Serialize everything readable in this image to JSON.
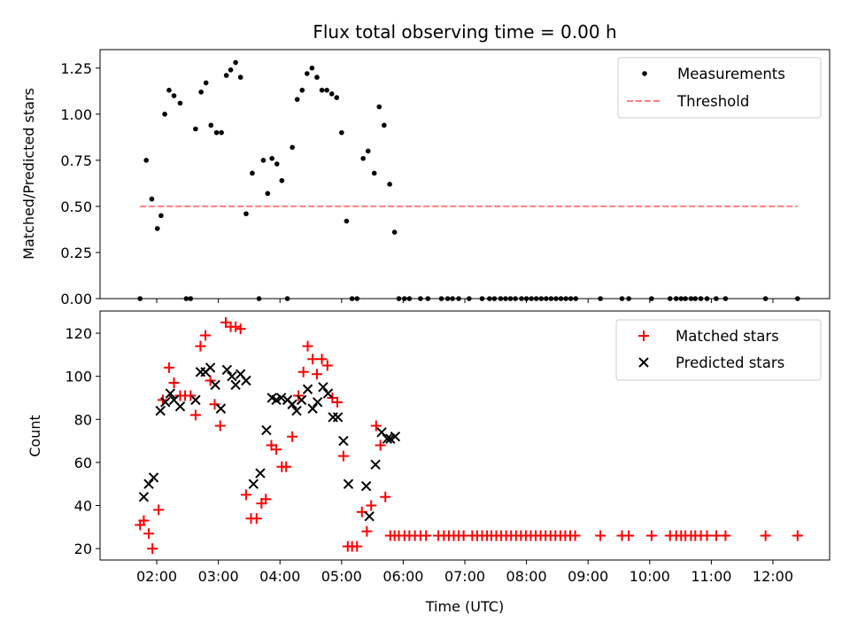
{
  "chart_data": [
    {
      "type": "scatter",
      "title": "Flux total observing time = 0.00 h",
      "ylabel": "Matched/Predicted stars",
      "xlabel": "",
      "x_unit": "hours UTC",
      "xlim": [
        1.08,
        12.92
      ],
      "ylim": [
        0,
        1.35
      ],
      "yticks": [
        0,
        0.25,
        0.5,
        0.75,
        1.0,
        1.25
      ],
      "ytick_labels": [
        "0.00",
        "0.25",
        "0.50",
        "0.75",
        "1.00",
        "1.25"
      ],
      "legend": {
        "location": "upper right",
        "entries": [
          "Measurements",
          "Threshold"
        ]
      },
      "series": [
        {
          "name": "Measurements",
          "marker": "dot",
          "color": "#000000",
          "x": [
            1.73,
            1.83,
            1.92,
            2.01,
            2.07,
            2.13,
            2.2,
            2.28,
            2.38,
            2.48,
            2.55,
            2.63,
            2.72,
            2.8,
            2.88,
            2.97,
            3.05,
            3.13,
            3.2,
            3.28,
            3.36,
            3.45,
            3.55,
            3.66,
            3.73,
            3.8,
            3.87,
            3.95,
            4.03,
            4.12,
            4.2,
            4.28,
            4.36,
            4.44,
            4.52,
            4.6,
            4.68,
            4.76,
            4.84,
            4.92,
            5.0,
            5.08,
            5.17,
            5.25,
            5.35,
            5.43,
            5.53,
            5.61,
            5.69,
            5.78,
            5.86,
            5.93,
            6.02,
            6.1,
            6.28,
            6.4,
            6.62,
            6.72,
            6.8,
            6.9,
            7.07,
            7.28,
            7.4,
            7.48,
            7.58,
            7.66,
            7.74,
            7.82,
            7.92,
            8.0,
            8.08,
            8.16,
            8.24,
            8.32,
            8.4,
            8.48,
            8.56,
            8.64,
            8.72,
            8.8,
            9.2,
            9.55,
            9.66,
            10.03,
            10.33,
            10.43,
            10.51,
            10.58,
            10.67,
            10.74,
            10.83,
            10.93,
            11.08,
            11.23,
            11.88,
            12.4
          ],
          "y": [
            0.0,
            0.75,
            0.54,
            0.38,
            0.45,
            1.0,
            1.13,
            1.1,
            1.06,
            0.0,
            0.0,
            0.92,
            1.12,
            1.17,
            0.94,
            0.9,
            0.9,
            1.21,
            1.24,
            1.28,
            1.2,
            0.46,
            0.68,
            0.0,
            0.75,
            0.57,
            0.76,
            0.73,
            0.64,
            0.0,
            0.82,
            1.08,
            1.13,
            1.22,
            1.25,
            1.2,
            1.13,
            1.13,
            1.11,
            1.09,
            0.9,
            0.42,
            0.0,
            0.0,
            0.76,
            0.8,
            0.68,
            1.04,
            0.94,
            0.62,
            0.36,
            0.0,
            0.0,
            0.0,
            0.0,
            0.0,
            0.0,
            0.0,
            0.0,
            0.0,
            0.0,
            0.0,
            0.0,
            0.0,
            0.0,
            0.0,
            0.0,
            0.0,
            0.0,
            0.0,
            0.0,
            0.0,
            0.0,
            0.0,
            0.0,
            0.0,
            0.0,
            0.0,
            0.0,
            0.0,
            0.0,
            0.0,
            0.0,
            0.0,
            0.0,
            0.0,
            0.0,
            0.0,
            0.0,
            0.0,
            0.0,
            0.0,
            0.0,
            0.0,
            0.0,
            0.0
          ]
        },
        {
          "name": "Threshold",
          "type": "line",
          "style": "dashed",
          "color": "#ff7f7f",
          "x": [
            1.73,
            12.4
          ],
          "y": [
            0.5,
            0.5
          ]
        }
      ]
    },
    {
      "type": "scatter",
      "title": "",
      "ylabel": "Count",
      "xlabel": "Time (UTC)",
      "x_unit": "hours UTC",
      "xlim": [
        1.08,
        12.92
      ],
      "ylim": [
        14.7,
        130.3
      ],
      "yticks": [
        20,
        40,
        60,
        80,
        100,
        120
      ],
      "ytick_labels": [
        "20",
        "40",
        "60",
        "80",
        "100",
        "120"
      ],
      "xticks": [
        2,
        3,
        4,
        5,
        6,
        7,
        8,
        9,
        10,
        11,
        12
      ],
      "xtick_labels": [
        "02:00",
        "03:00",
        "04:00",
        "05:00",
        "06:00",
        "07:00",
        "08:00",
        "09:00",
        "10:00",
        "11:00",
        "12:00"
      ],
      "legend": {
        "location": "upper right",
        "entries": [
          "Matched stars",
          "Predicted stars"
        ]
      },
      "series": [
        {
          "name": "Matched stars",
          "marker": "plus",
          "color": "#ff0000",
          "x": [
            1.73,
            1.79,
            1.87,
            1.93,
            2.03,
            2.1,
            2.2,
            2.28,
            2.38,
            2.46,
            2.55,
            2.63,
            2.71,
            2.79,
            2.87,
            2.94,
            3.03,
            3.12,
            3.2,
            3.28,
            3.36,
            3.45,
            3.53,
            3.62,
            3.7,
            3.77,
            3.86,
            3.94,
            4.03,
            4.1,
            4.2,
            4.3,
            4.38,
            4.45,
            4.53,
            4.6,
            4.68,
            4.77,
            4.85,
            4.93,
            5.03,
            5.1,
            5.17,
            5.25,
            5.33,
            5.41,
            5.48,
            5.56,
            5.63,
            5.71,
            5.79,
            5.86,
            5.93,
            6.02,
            6.1,
            6.19,
            6.28,
            6.37,
            6.57,
            6.66,
            6.74,
            6.82,
            6.9,
            6.98,
            7.12,
            7.2,
            7.28,
            7.36,
            7.43,
            7.51,
            7.59,
            7.67,
            7.75,
            7.83,
            7.91,
            7.99,
            8.07,
            8.15,
            8.23,
            8.31,
            8.39,
            8.47,
            8.55,
            8.63,
            8.71,
            8.79,
            9.2,
            9.55,
            9.66,
            10.03,
            10.33,
            10.43,
            10.51,
            10.58,
            10.67,
            10.74,
            10.83,
            10.93,
            11.08,
            11.23,
            11.88,
            12.4
          ],
          "y": [
            31,
            33,
            27,
            20,
            38,
            89,
            104,
            97,
            91,
            91,
            91,
            82,
            114,
            119,
            98,
            87,
            77,
            125,
            123,
            123,
            122,
            45,
            34,
            34,
            41,
            43,
            68,
            66,
            58,
            58,
            72,
            91,
            102,
            114,
            108,
            101,
            108,
            105,
            90,
            88,
            63,
            21,
            21,
            21,
            37,
            28,
            40,
            77,
            68,
            44,
            26,
            26,
            26,
            26,
            26,
            26,
            26,
            26,
            26,
            26,
            26,
            26,
            26,
            26,
            26,
            26,
            26,
            26,
            26,
            26,
            26,
            26,
            26,
            26,
            26,
            26,
            26,
            26,
            26,
            26,
            26,
            26,
            26,
            26,
            26,
            26,
            26,
            26,
            26,
            26,
            26,
            26,
            26,
            26,
            26,
            26,
            26,
            26,
            26,
            26,
            26,
            26
          ]
        },
        {
          "name": "Predicted stars",
          "marker": "x",
          "color": "#000000",
          "x": [
            1.79,
            1.87,
            1.95,
            2.06,
            2.14,
            2.22,
            2.28,
            2.38,
            2.63,
            2.71,
            2.79,
            2.87,
            2.95,
            3.04,
            3.14,
            3.22,
            3.28,
            3.36,
            3.45,
            3.57,
            3.68,
            3.78,
            3.87,
            3.94,
            4.02,
            4.12,
            4.2,
            4.27,
            4.35,
            4.45,
            4.53,
            4.61,
            4.7,
            4.78,
            4.86,
            4.94,
            5.03,
            5.11,
            5.4,
            5.45,
            5.55,
            5.65,
            5.74,
            5.79,
            5.87
          ],
          "y": [
            44,
            50,
            53,
            84,
            88,
            92,
            89,
            86,
            89,
            102,
            102,
            104,
            96,
            85,
            103,
            100,
            96,
            101,
            98,
            50,
            55,
            75,
            90,
            89,
            90,
            89,
            87,
            84,
            89,
            94,
            85,
            88,
            95,
            92,
            81,
            81,
            70,
            50,
            49,
            35,
            59,
            74,
            71,
            71,
            72
          ]
        }
      ]
    }
  ]
}
